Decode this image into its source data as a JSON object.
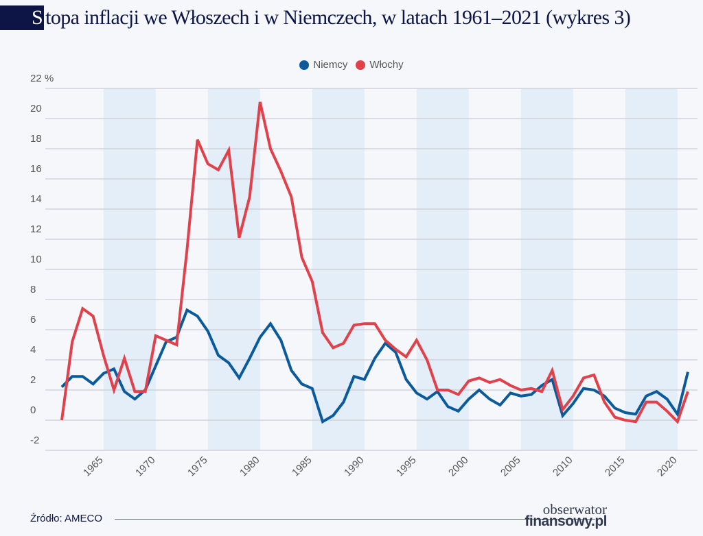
{
  "title_first_letter": "S",
  "title_rest": "topa inflacji we Włoszech i w Niemczech, w latach 1961–2021 (wykres 3)",
  "source": "Źródło: AMECO",
  "logo": {
    "line1": "obserwator",
    "line2": "finansowy.pl"
  },
  "chart_data": {
    "type": "line",
    "title": "Stopa inflacji we Włoszech i w Niemczech, w latach 1961–2021 (wykres 3)",
    "xlabel": "",
    "ylabel": "%",
    "ylim": [
      -2,
      22
    ],
    "yticks": [
      "-2",
      "0",
      "2",
      "4",
      "6",
      "8",
      "10",
      "12",
      "14",
      "16",
      "18",
      "20",
      "22 %"
    ],
    "xticks": [
      "1965",
      "1970",
      "1975",
      "1980",
      "1985",
      "1990",
      "1995",
      "2000",
      "2005",
      "2010",
      "2015",
      "2020"
    ],
    "shaded_periods": [
      [
        1965,
        1970
      ],
      [
        1975,
        1980
      ],
      [
        1985,
        1990
      ],
      [
        1995,
        2000
      ],
      [
        2005,
        2010
      ],
      [
        2015,
        2020
      ]
    ],
    "legend_position": "top-center",
    "x_start": 1961,
    "series": [
      {
        "name": "Niemcy",
        "color": "#0a5a9c",
        "values": [
          2.2,
          2.9,
          2.9,
          2.4,
          3.1,
          3.4,
          1.9,
          1.4,
          2.0,
          3.6,
          5.2,
          5.5,
          7.3,
          6.9,
          5.9,
          4.3,
          3.8,
          2.8,
          4.1,
          5.5,
          6.4,
          5.3,
          3.3,
          2.4,
          2.1,
          -0.1,
          0.3,
          1.2,
          2.9,
          2.7,
          4.1,
          5.1,
          4.5,
          2.7,
          1.8,
          1.4,
          1.9,
          0.9,
          0.6,
          1.4,
          2.0,
          1.4,
          1.0,
          1.8,
          1.6,
          1.7,
          2.3,
          2.7,
          0.3,
          1.1,
          2.1,
          2.0,
          1.6,
          0.8,
          0.5,
          0.4,
          1.6,
          1.9,
          1.4,
          0.4,
          3.2
        ]
      },
      {
        "name": "Włochy",
        "color": "#e0414b",
        "values": [
          0.0,
          5.2,
          7.4,
          6.9,
          4.3,
          2.0,
          4.1,
          1.9,
          1.9,
          5.6,
          5.3,
          5.0,
          11.3,
          18.6,
          17.0,
          16.6,
          17.9,
          12.1,
          14.8,
          21.1,
          18.0,
          16.5,
          14.8,
          10.8,
          9.2,
          5.8,
          4.8,
          5.1,
          6.3,
          6.4,
          6.4,
          5.3,
          4.7,
          4.2,
          5.3,
          4.0,
          2.0,
          2.0,
          1.7,
          2.6,
          2.8,
          2.5,
          2.7,
          2.3,
          2.0,
          2.1,
          1.9,
          3.3,
          0.7,
          1.6,
          2.8,
          3.0,
          1.2,
          0.2,
          0.0,
          -0.1,
          1.2,
          1.2,
          0.6,
          -0.1,
          1.9
        ]
      }
    ]
  }
}
